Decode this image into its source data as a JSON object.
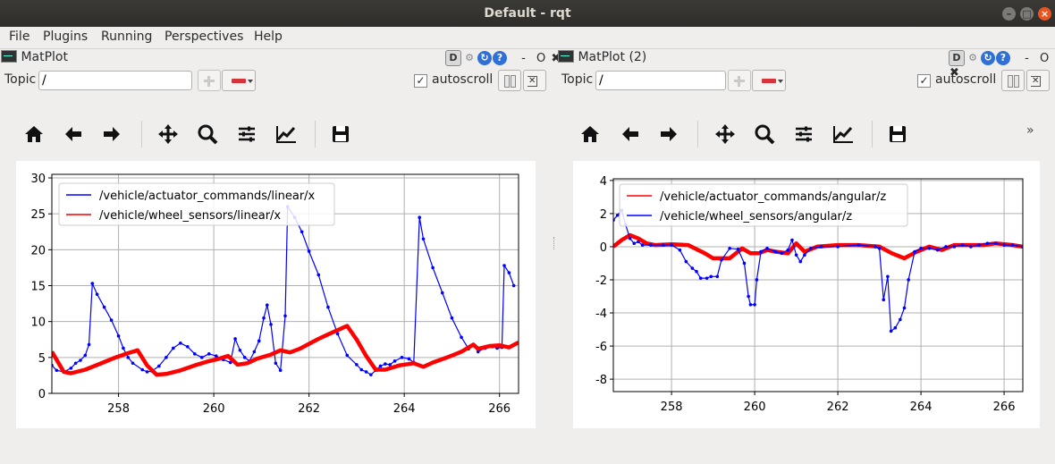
{
  "window": {
    "title": "Default - rqt"
  },
  "menu": [
    "File",
    "Plugins",
    "Running",
    "Perspectives",
    "Help"
  ],
  "header_button_labels": {
    "d": "D",
    "dash": "-",
    "o": "O"
  },
  "left": {
    "title": "MatPlot",
    "topic_label": "Topic",
    "topic_value": "/",
    "autoscroll_label": "autoscroll",
    "autoscroll_checked": "✓"
  },
  "right": {
    "title": "MatPlot (2)",
    "topic_label": "Topic",
    "topic_value": "/",
    "autoscroll_label": "autoscroll",
    "autoscroll_checked": "✓"
  },
  "toolbar_icons": [
    "home-icon",
    "back-icon",
    "forward-icon",
    "pan-icon",
    "zoom-icon",
    "subplots-icon",
    "axes-edit-icon",
    "save-icon"
  ],
  "more_label": "»",
  "chart_data": [
    {
      "type": "line",
      "title": "",
      "xlim": [
        256.6,
        266.4
      ],
      "ylim": [
        0,
        30.5
      ],
      "xticks": [
        258,
        260,
        262,
        264,
        266
      ],
      "yticks": [
        0,
        5,
        10,
        15,
        20,
        25,
        30
      ],
      "grid": true,
      "legend_position": "top-left",
      "series": [
        {
          "name": "/vehicle/actuator_commands/linear/x",
          "color": "#0000ff",
          "markers": true,
          "points": [
            [
              256.6,
              3.9
            ],
            [
              256.7,
              3.2
            ],
            [
              256.85,
              3.0
            ],
            [
              257.0,
              3.5
            ],
            [
              257.1,
              4.2
            ],
            [
              257.2,
              4.6
            ],
            [
              257.3,
              5.3
            ],
            [
              257.38,
              6.8
            ],
            [
              257.45,
              15.3
            ],
            [
              257.55,
              13.8
            ],
            [
              257.7,
              12.0
            ],
            [
              257.85,
              10.2
            ],
            [
              258.0,
              8.0
            ],
            [
              258.1,
              6.3
            ],
            [
              258.2,
              5.0
            ],
            [
              258.3,
              4.2
            ],
            [
              258.5,
              3.3
            ],
            [
              258.6,
              3.0
            ],
            [
              258.7,
              3.1
            ],
            [
              258.85,
              3.8
            ],
            [
              259.0,
              5.0
            ],
            [
              259.15,
              6.3
            ],
            [
              259.3,
              7.0
            ],
            [
              259.45,
              6.5
            ],
            [
              259.6,
              5.5
            ],
            [
              259.75,
              5.0
            ],
            [
              259.9,
              5.5
            ],
            [
              260.05,
              5.2
            ],
            [
              260.2,
              4.7
            ],
            [
              260.35,
              4.3
            ],
            [
              260.45,
              7.6
            ],
            [
              260.55,
              6.0
            ],
            [
              260.65,
              5.0
            ],
            [
              260.75,
              4.5
            ],
            [
              260.85,
              5.8
            ],
            [
              260.95,
              7.3
            ],
            [
              261.05,
              10.5
            ],
            [
              261.12,
              12.3
            ],
            [
              261.2,
              9.6
            ],
            [
              261.3,
              4.2
            ],
            [
              261.4,
              3.2
            ],
            [
              261.5,
              10.8
            ],
            [
              261.55,
              26.0
            ],
            [
              261.7,
              24.5
            ],
            [
              261.85,
              22.5
            ],
            [
              262.0,
              19.8
            ],
            [
              262.2,
              16.5
            ],
            [
              262.4,
              12.0
            ],
            [
              262.6,
              8.3
            ],
            [
              262.8,
              5.3
            ],
            [
              263.0,
              4.0
            ],
            [
              263.1,
              3.3
            ],
            [
              263.2,
              3.0
            ],
            [
              263.3,
              2.6
            ],
            [
              263.4,
              3.2
            ],
            [
              263.5,
              3.8
            ],
            [
              263.6,
              4.1
            ],
            [
              263.7,
              4.0
            ],
            [
              263.8,
              4.5
            ],
            [
              263.95,
              5.0
            ],
            [
              264.1,
              4.8
            ],
            [
              264.2,
              4.3
            ],
            [
              264.32,
              24.5
            ],
            [
              264.4,
              21.5
            ],
            [
              264.6,
              17.5
            ],
            [
              264.8,
              14.0
            ],
            [
              265.0,
              10.5
            ],
            [
              265.2,
              7.8
            ],
            [
              265.35,
              6.2
            ],
            [
              265.45,
              6.8
            ],
            [
              265.55,
              5.8
            ],
            [
              265.7,
              6.3
            ],
            [
              265.85,
              6.5
            ],
            [
              265.95,
              6.3
            ],
            [
              266.05,
              6.4
            ],
            [
              266.1,
              17.8
            ],
            [
              266.2,
              16.8
            ],
            [
              266.3,
              15.0
            ]
          ]
        },
        {
          "name": "/vehicle/wheel_sensors/linear/x",
          "color": "#ff0000",
          "markers": false,
          "points": [
            [
              256.6,
              5.8
            ],
            [
              256.85,
              3.0
            ],
            [
              257.0,
              2.8
            ],
            [
              257.3,
              3.3
            ],
            [
              257.6,
              4.1
            ],
            [
              257.9,
              4.9
            ],
            [
              258.2,
              5.6
            ],
            [
              258.4,
              6.0
            ],
            [
              258.6,
              3.9
            ],
            [
              258.8,
              2.6
            ],
            [
              259.0,
              2.7
            ],
            [
              259.3,
              3.2
            ],
            [
              259.6,
              3.9
            ],
            [
              259.9,
              4.5
            ],
            [
              260.1,
              4.8
            ],
            [
              260.3,
              5.2
            ],
            [
              260.5,
              4.0
            ],
            [
              260.7,
              4.2
            ],
            [
              260.9,
              4.8
            ],
            [
              261.2,
              5.4
            ],
            [
              261.4,
              6.0
            ],
            [
              261.6,
              5.7
            ],
            [
              261.8,
              6.2
            ],
            [
              262.0,
              6.9
            ],
            [
              262.2,
              7.6
            ],
            [
              262.4,
              8.2
            ],
            [
              262.6,
              8.8
            ],
            [
              262.8,
              9.4
            ],
            [
              263.0,
              7.5
            ],
            [
              263.2,
              5.2
            ],
            [
              263.4,
              3.3
            ],
            [
              263.6,
              3.3
            ],
            [
              263.9,
              3.9
            ],
            [
              264.2,
              4.2
            ],
            [
              264.4,
              3.7
            ],
            [
              264.6,
              4.3
            ],
            [
              264.9,
              5.0
            ],
            [
              265.2,
              5.8
            ],
            [
              265.45,
              6.8
            ],
            [
              265.55,
              6.2
            ],
            [
              265.8,
              6.6
            ],
            [
              266.0,
              6.7
            ],
            [
              266.2,
              6.4
            ],
            [
              266.4,
              7.1
            ]
          ]
        }
      ]
    },
    {
      "type": "line",
      "title": "",
      "xlim": [
        256.6,
        266.45
      ],
      "ylim": [
        -8.75,
        4.1
      ],
      "xticks": [
        258,
        260,
        262,
        264,
        266
      ],
      "yticks": [
        4,
        2,
        0,
        -2,
        -4,
        -6,
        -8
      ],
      "grid": true,
      "legend_position": "top-left",
      "series": [
        {
          "name": "/vehicle/actuator_commands/angular/z",
          "color": "#ff0000",
          "markers": false,
          "points": [
            [
              256.6,
              0.0
            ],
            [
              256.8,
              0.4
            ],
            [
              257.0,
              0.7
            ],
            [
              257.2,
              0.5
            ],
            [
              257.4,
              0.2
            ],
            [
              257.6,
              0.1
            ],
            [
              258.0,
              0.15
            ],
            [
              258.4,
              0.1
            ],
            [
              258.8,
              -0.4
            ],
            [
              259.0,
              -0.7
            ],
            [
              259.4,
              -0.7
            ],
            [
              259.7,
              -0.1
            ],
            [
              259.9,
              -0.4
            ],
            [
              260.1,
              -0.4
            ],
            [
              260.3,
              -0.2
            ],
            [
              260.5,
              -0.3
            ],
            [
              260.8,
              -0.4
            ],
            [
              261.0,
              0.2
            ],
            [
              261.2,
              -0.3
            ],
            [
              261.5,
              0.0
            ],
            [
              262.0,
              0.1
            ],
            [
              262.5,
              0.1
            ],
            [
              263.0,
              0.0
            ],
            [
              263.3,
              -0.4
            ],
            [
              263.6,
              -0.7
            ],
            [
              263.9,
              -0.3
            ],
            [
              264.2,
              0.0
            ],
            [
              264.5,
              -0.2
            ],
            [
              264.8,
              0.1
            ],
            [
              265.2,
              0.1
            ],
            [
              265.5,
              0.1
            ],
            [
              265.8,
              0.2
            ],
            [
              266.2,
              0.1
            ],
            [
              266.45,
              0.0
            ]
          ]
        },
        {
          "name": "/vehicle/wheel_sensors/angular/z",
          "color": "#0000ff",
          "markers": true,
          "points": [
            [
              256.6,
              1.6
            ],
            [
              256.7,
              1.9
            ],
            [
              256.8,
              2.2
            ],
            [
              256.9,
              1.3
            ],
            [
              257.0,
              0.5
            ],
            [
              257.1,
              0.2
            ],
            [
              257.2,
              0.3
            ],
            [
              257.3,
              0.1
            ],
            [
              257.5,
              0.1
            ],
            [
              257.8,
              0.1
            ],
            [
              258.0,
              0.1
            ],
            [
              258.2,
              -0.2
            ],
            [
              258.35,
              -0.9
            ],
            [
              258.5,
              -1.3
            ],
            [
              258.6,
              -1.5
            ],
            [
              258.7,
              -1.9
            ],
            [
              258.85,
              -1.9
            ],
            [
              258.95,
              -1.8
            ],
            [
              259.1,
              -1.8
            ],
            [
              259.2,
              -0.8
            ],
            [
              259.4,
              -0.1
            ],
            [
              259.6,
              -0.15
            ],
            [
              259.75,
              -1.0
            ],
            [
              259.85,
              -3.0
            ],
            [
              259.9,
              -3.5
            ],
            [
              260.0,
              -3.5
            ],
            [
              260.05,
              -2.0
            ],
            [
              260.15,
              -0.3
            ],
            [
              260.3,
              -0.1
            ],
            [
              260.5,
              -0.3
            ],
            [
              260.65,
              -0.4
            ],
            [
              260.8,
              -0.2
            ],
            [
              260.9,
              0.4
            ],
            [
              261.0,
              -0.5
            ],
            [
              261.1,
              -0.9
            ],
            [
              261.2,
              -0.5
            ],
            [
              261.35,
              -0.1
            ],
            [
              261.6,
              0.0
            ],
            [
              262.0,
              0.0
            ],
            [
              262.5,
              0.1
            ],
            [
              262.9,
              0.0
            ],
            [
              263.0,
              -0.1
            ],
            [
              263.1,
              -3.2
            ],
            [
              263.2,
              -1.8
            ],
            [
              263.28,
              -5.1
            ],
            [
              263.38,
              -4.9
            ],
            [
              263.5,
              -4.4
            ],
            [
              263.6,
              -3.7
            ],
            [
              263.7,
              -2.0
            ],
            [
              263.85,
              -0.3
            ],
            [
              264.0,
              -0.1
            ],
            [
              264.2,
              -0.1
            ],
            [
              264.4,
              -0.2
            ],
            [
              264.6,
              0.0
            ],
            [
              264.8,
              0.0
            ],
            [
              265.0,
              0.1
            ],
            [
              265.2,
              0.0
            ],
            [
              265.4,
              0.1
            ],
            [
              265.6,
              0.2
            ],
            [
              265.8,
              0.2
            ],
            [
              266.0,
              0.1
            ],
            [
              266.2,
              0.1
            ],
            [
              266.45,
              0.0
            ]
          ]
        }
      ]
    }
  ]
}
